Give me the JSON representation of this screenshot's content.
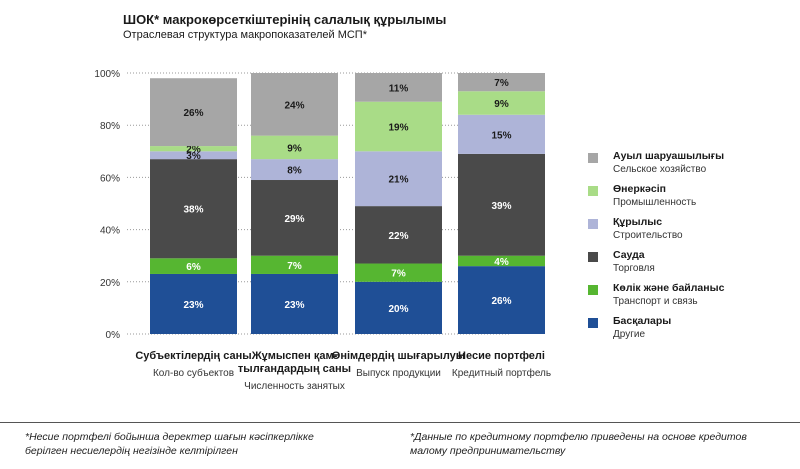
{
  "header": {
    "title": "ШОК* макрокөрсеткіштерінің салалық құрылымы",
    "subtitle": "Отраслевая структура макропоказателей МСП*"
  },
  "legend": [
    {
      "kk": "Ауыл шаруашылығы",
      "ru": "Сельское хозяйство",
      "color": "#a6a6a6"
    },
    {
      "kk": "Өнеркәсіп",
      "ru": "Промышленность",
      "color": "#a9dc87"
    },
    {
      "kk": "Құрылыс",
      "ru": "Строительство",
      "color": "#aeb4d8"
    },
    {
      "kk": "Сауда",
      "ru": "Торговля",
      "color": "#4a4a4a"
    },
    {
      "kk": "Көлік және байланыс",
      "ru": "Транспорт и связь",
      "color": "#56b631"
    },
    {
      "kk": "Басқалары",
      "ru": "Другие",
      "color": "#1f4f96"
    }
  ],
  "chart_data": {
    "type": "bar",
    "stacked": true,
    "categories": [
      {
        "kk": "Субъектілердің саны",
        "ru": "Кол-во субъектов"
      },
      {
        "kk": "Жұмыспен қам-тылғандардың саны",
        "ru": "Численность занятых"
      },
      {
        "kk": "Өнімдердің шығарылуы",
        "ru": "Выпуск продукции"
      },
      {
        "kk": "Несие портфелі",
        "ru": "Кредитный портфель"
      }
    ],
    "series": [
      {
        "name": "Басқалары",
        "values": [
          23,
          23,
          20,
          26
        ],
        "labels": [
          "23%",
          "23%",
          "20%",
          "26%"
        ]
      },
      {
        "name": "Көлік және байланыс",
        "values": [
          6,
          7,
          7,
          4
        ],
        "labels": [
          "6%",
          "7%",
          "7%",
          "4%"
        ]
      },
      {
        "name": "Сауда",
        "values": [
          38,
          29,
          22,
          39
        ],
        "labels": [
          "38%",
          "29%",
          "22%",
          "39%"
        ]
      },
      {
        "name": "Құрылыс",
        "values": [
          3,
          8,
          21,
          15
        ],
        "labels": [
          "3%",
          "8%",
          "21%",
          "15%"
        ]
      },
      {
        "name": "Өнеркәсіп",
        "values": [
          2,
          9,
          19,
          9
        ],
        "labels": [
          "2%",
          "9%",
          "19%",
          "9%"
        ]
      },
      {
        "name": "Ауыл шаруашылығы",
        "values": [
          26,
          24,
          11,
          7
        ],
        "labels": [
          "26%",
          "24%",
          "11%",
          "7%"
        ]
      }
    ],
    "yticks": [
      0,
      20,
      40,
      60,
      80,
      100
    ],
    "ytick_labels": [
      "0%",
      "20%",
      "40%",
      "60%",
      "80%",
      "100%"
    ],
    "ylim": [
      0,
      100
    ]
  },
  "footnotes": {
    "left": "*Несие портфелі бойынша деректер шағын кәсіпкерлікке берілген несиелердің негізінде келтірілген",
    "right": "*Данные по кредитному портфелю приведены на основе кредитов малому предпринимательству"
  }
}
